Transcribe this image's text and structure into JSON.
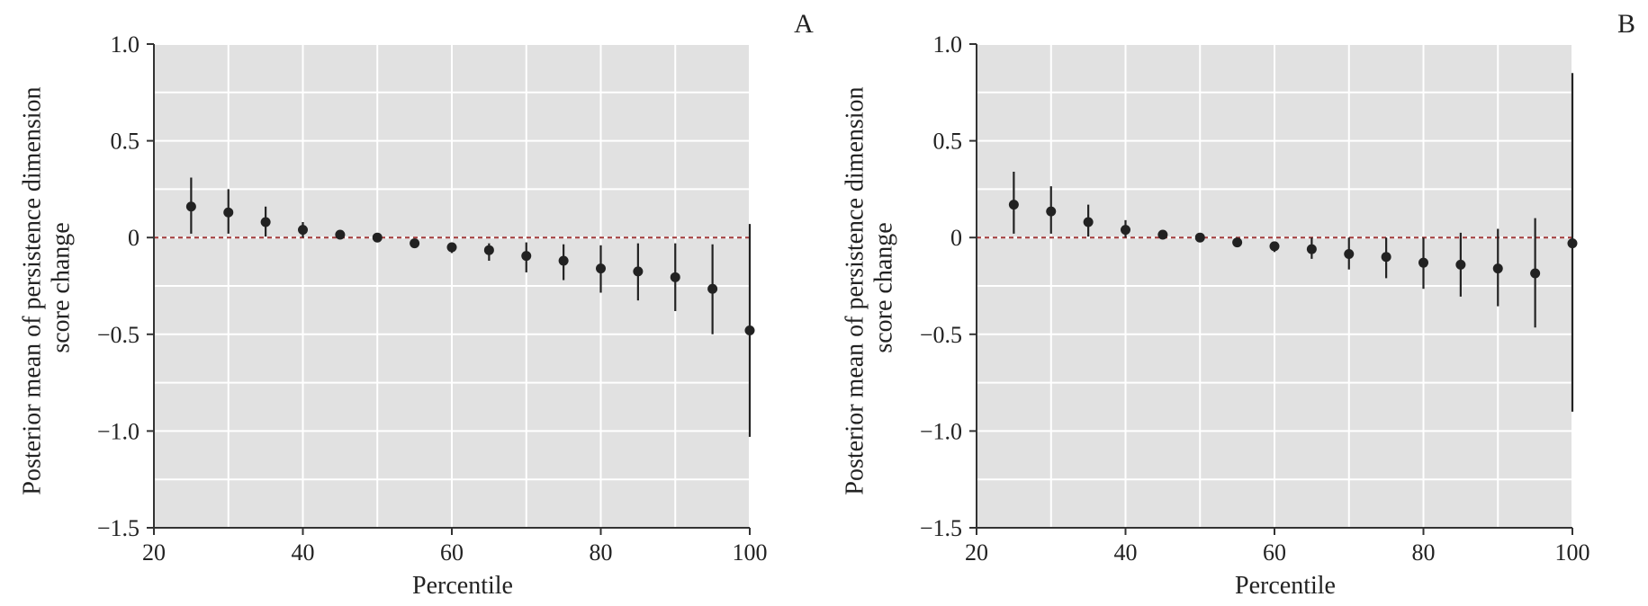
{
  "colors": {
    "panel_background": "#e1e1e1",
    "grid": "#ffffff",
    "point": "#222222",
    "zero_line": "#a23b3b",
    "axis": "#333333"
  },
  "chart_data": [
    {
      "panel": "A",
      "type": "scatter",
      "subtitle": "A",
      "xlabel": "Percentile",
      "ylabel": "Posterior mean of persistence dimension score change",
      "xlim": [
        20,
        100
      ],
      "ylim": [
        -1.5,
        1.0
      ],
      "xticks": [
        20,
        40,
        60,
        80,
        100
      ],
      "xtick_labels": [
        "20",
        "40",
        "60",
        "80",
        "100"
      ],
      "yticks": [
        1.0,
        0.5,
        0,
        -0.5,
        -1.0,
        -1.5
      ],
      "ytick_labels": [
        "1.0",
        "0.5",
        "0",
        "−0.5",
        "−1.0",
        "−1.5"
      ],
      "grid": true,
      "reference_line": {
        "y": 0,
        "style": "dashed"
      },
      "x": [
        25,
        30,
        35,
        40,
        45,
        50,
        55,
        60,
        65,
        70,
        75,
        80,
        85,
        90,
        95,
        100
      ],
      "y": [
        0.16,
        0.13,
        0.08,
        0.04,
        0.015,
        0.0,
        -0.03,
        -0.05,
        -0.065,
        -0.095,
        -0.12,
        -0.16,
        -0.175,
        -0.205,
        -0.265,
        -0.48
      ],
      "lower": [
        0.02,
        0.02,
        0.005,
        0.0,
        0.01,
        -0.005,
        -0.05,
        -0.08,
        -0.12,
        -0.18,
        -0.22,
        -0.285,
        -0.325,
        -0.38,
        -0.5,
        -1.03
      ],
      "upper": [
        0.31,
        0.25,
        0.16,
        0.08,
        0.02,
        0.005,
        -0.01,
        -0.025,
        -0.03,
        -0.025,
        -0.035,
        -0.04,
        -0.03,
        -0.03,
        -0.035,
        0.07
      ]
    },
    {
      "panel": "B",
      "type": "scatter",
      "subtitle": "B",
      "xlabel": "Percentile",
      "ylabel": "Posterior mean of persistence dimension score change",
      "xlim": [
        20,
        100
      ],
      "ylim": [
        -1.5,
        1.0
      ],
      "xticks": [
        20,
        40,
        60,
        80,
        100
      ],
      "xtick_labels": [
        "20",
        "40",
        "60",
        "80",
        "100"
      ],
      "yticks": [
        1.0,
        0.5,
        0,
        -0.5,
        -1.0,
        -1.5
      ],
      "ytick_labels": [
        "1.0",
        "0.5",
        "0",
        "−0.5",
        "−1.0",
        "−1.5"
      ],
      "grid": true,
      "reference_line": {
        "y": 0,
        "style": "dashed"
      },
      "x": [
        25,
        30,
        35,
        40,
        45,
        50,
        55,
        60,
        65,
        70,
        75,
        80,
        85,
        90,
        95,
        100
      ],
      "y": [
        0.17,
        0.135,
        0.08,
        0.04,
        0.015,
        0.0,
        -0.025,
        -0.045,
        -0.06,
        -0.085,
        -0.1,
        -0.13,
        -0.14,
        -0.16,
        -0.185,
        -0.03
      ],
      "lower": [
        0.02,
        0.02,
        0.005,
        0.0,
        0.01,
        -0.005,
        -0.045,
        -0.075,
        -0.11,
        -0.165,
        -0.21,
        -0.265,
        -0.305,
        -0.355,
        -0.465,
        -0.9
      ],
      "upper": [
        0.34,
        0.265,
        0.17,
        0.09,
        0.02,
        0.005,
        -0.01,
        -0.02,
        0.0,
        0.0,
        0.0,
        0.0,
        0.025,
        0.045,
        0.1,
        0.85
      ]
    }
  ]
}
